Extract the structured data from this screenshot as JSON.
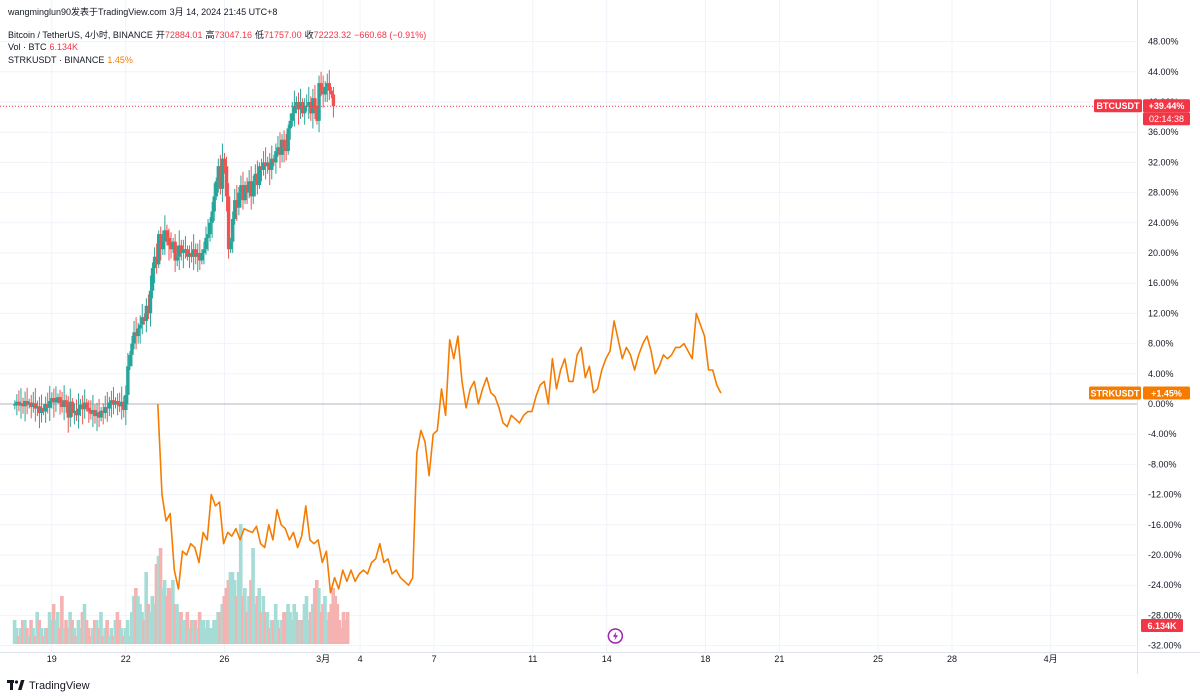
{
  "attribution": {
    "user": "wangminglun90发表于TradingView.com",
    "datetime": "3月 14, 2024 21:45 UTC+8"
  },
  "legend": {
    "symbol": "Bitcoin / TetherUS, 4小时, BINANCE",
    "open_label": "开",
    "open": "72884.01",
    "high_label": "高",
    "high": "73047.16",
    "low_label": "低",
    "low": "71757.00",
    "close_label": "收",
    "close": "72223.32",
    "change": "−660.68 (−0.91%)",
    "vol_label": "Vol · BTC",
    "vol_value": "6.134K",
    "compare_label": "STRKUSDT · BINANCE",
    "compare_value": "1.45%"
  },
  "badges": {
    "btc_name": "BTCUSDT",
    "btc_pct": "+39.44%",
    "btc_countdown": "02:14:38",
    "strk_name": "STRKUSDT",
    "strk_pct": "+1.45%",
    "vol": "6.134K"
  },
  "footer": {
    "brand": "TradingView"
  },
  "colors": {
    "up": "#26a69a",
    "down": "#ef5350",
    "compare": "#f57c00",
    "badge_red": "#f23645",
    "grid": "#f0f3fa",
    "axis_text": "#131722"
  },
  "chart_data": {
    "type": "line",
    "title": "Bitcoin / TetherUS, 4小时, BINANCE",
    "ylabel": "percent change",
    "ylim": [
      -32,
      50
    ],
    "y_ticks": [
      "48.00%",
      "44.00%",
      "40.00%",
      "36.00%",
      "32.00%",
      "28.00%",
      "24.00%",
      "20.00%",
      "16.00%",
      "12.00%",
      "8.00%",
      "4.00%",
      "0.00%",
      "-4.00%",
      "-8.00%",
      "-12.00%",
      "-16.00%",
      "-20.00%",
      "-24.00%",
      "-28.00%",
      "-32.00%"
    ],
    "x_ticks": [
      {
        "label": "19",
        "t": 3
      },
      {
        "label": "22",
        "t": 9
      },
      {
        "label": "26",
        "t": 17
      },
      {
        "label": "3月",
        "t": 25
      },
      {
        "label": "4",
        "t": 28
      },
      {
        "label": "7",
        "t": 34
      },
      {
        "label": "11",
        "t": 42
      },
      {
        "label": "14",
        "t": 48
      },
      {
        "label": "18",
        "t": 56
      },
      {
        "label": "21",
        "t": 62
      },
      {
        "label": "25",
        "t": 70
      },
      {
        "label": "28",
        "t": 76
      },
      {
        "label": "4月",
        "t": 84
      }
    ],
    "x_range": [
      -1.2,
      91
    ],
    "series": [
      {
        "name": "BTCUSDT",
        "style": "candlestick",
        "t_start": 0,
        "t_step": 0.1667,
        "closes": [
          0,
          0.3,
          -0.2,
          0.1,
          -0.3,
          0.4,
          -0.1,
          0.2,
          -0.4,
          0.1,
          -0.6,
          -0.3,
          -1.2,
          -0.5,
          -1.0,
          0.0,
          -0.5,
          0.4,
          0.8,
          0.2,
          0.6,
          0.9,
          0.1,
          -0.4,
          0.5,
          -0.2,
          -1.8,
          0.3,
          -1.2,
          -0.9,
          -1.5,
          -0.6,
          -0.1,
          -0.7,
          0.2,
          -0.5,
          -1.0,
          -1.3,
          -0.8,
          -1.6,
          -1.1,
          -1.8,
          -0.9,
          -1.2,
          -0.4,
          -0.6,
          0.2,
          0.5,
          -0.1,
          0.4,
          0.0,
          -0.3,
          0.3,
          -0.8,
          1.2,
          5.0,
          6.5,
          8.0,
          9.5,
          9.0,
          10.0,
          10.5,
          11.5,
          11.0,
          13.0,
          12.0,
          15.0,
          18.0,
          19.5,
          18.5,
          22.5,
          20.5,
          21.5,
          23.0,
          22.0,
          21.0,
          20.5,
          21.5,
          19.0,
          19.5,
          21.0,
          20.0,
          20.5,
          20.5,
          19.5,
          20.0,
          19.5,
          20.5,
          19.5,
          20.0,
          19.0,
          20.0,
          20.5,
          22.0,
          22.5,
          24.0,
          25.5,
          27.5,
          29.5,
          31.5,
          28.5,
          32.5,
          31.5,
          27.5,
          20.5,
          21.5,
          24.5,
          27.0,
          26.0,
          28.0,
          29.0,
          27.0,
          29.0,
          28.0,
          29.5,
          27.5,
          29.5,
          30.5,
          29.0,
          31.5,
          31.0,
          32.0,
          31.5,
          32.0,
          31.0,
          32.5,
          32.0,
          33.5,
          34.0,
          33.0,
          35.0,
          34.0,
          33.5,
          36.5,
          37.5,
          38.5,
          39.5,
          40.0,
          39.0,
          40.0,
          38.5,
          39.5,
          39.5,
          40.0,
          38.5,
          40.5,
          39.0,
          37.5,
          42.5,
          41.5,
          41.0,
          42.0,
          42.5,
          41.5,
          41.0,
          39.44
        ],
        "last_pct": 39.44
      },
      {
        "name": "STRKUSDT",
        "style": "line",
        "t_start": 11.6,
        "t_step": 0.3333,
        "values": [
          0.0,
          -12.0,
          -15.5,
          -14.5,
          -22.0,
          -24.5,
          -19.5,
          -20.0,
          -18.5,
          -19.0,
          -21.0,
          -17.0,
          -18.0,
          -12.0,
          -13.5,
          -13.0,
          -18.5,
          -17.0,
          -17.5,
          -16.5,
          -18.0,
          -16.5,
          -16.8,
          -17.0,
          -16.2,
          -18.5,
          -19.0,
          -16.0,
          -18.0,
          -14.0,
          -16.0,
          -16.5,
          -18.0,
          -17.0,
          -19.0,
          -17.5,
          -13.5,
          -18.0,
          -18.5,
          -18.0,
          -21.0,
          -19.5,
          -25.0,
          -23.0,
          -24.5,
          -22.0,
          -23.5,
          -22.0,
          -23.5,
          -22.5,
          -22.0,
          -22.5,
          -21.0,
          -20.5,
          -18.5,
          -21.0,
          -20.5,
          -22.5,
          -22.0,
          -23.0,
          -23.5,
          -24.0,
          -23.0,
          -6.5,
          -3.5,
          -5.0,
          -9.5,
          -4.0,
          -3.5,
          2.0,
          -1.5,
          8.5,
          6.0,
          9.0,
          3.0,
          -0.5,
          2.0,
          3.0,
          0.0,
          2.0,
          3.5,
          1.5,
          1.0,
          -0.5,
          -2.5,
          -3.0,
          -1.5,
          -2.0,
          -2.5,
          -1.5,
          -1.0,
          -1.0,
          1.0,
          2.5,
          3.0,
          0.0,
          6.0,
          2.0,
          4.5,
          6.0,
          3.0,
          3.0,
          6.5,
          7.5,
          3.5,
          5.0,
          1.5,
          2.0,
          4.5,
          6.0,
          7.0,
          11.0,
          8.5,
          6.0,
          7.5,
          6.5,
          4.5,
          6.5,
          8.0,
          9.0,
          7.0,
          4.0,
          5.0,
          6.5,
          6.0,
          6.5,
          7.5,
          7.5,
          8.0,
          7.0,
          6.0,
          12.0,
          10.5,
          9.0,
          4.5,
          4.5,
          2.5,
          1.45
        ],
        "last_pct": 1.45
      },
      {
        "name": "Vol · BTC",
        "style": "histogram",
        "t_start": 0,
        "t_step": 0.1667,
        "values": [
          3,
          2,
          1,
          2,
          3,
          3,
          2,
          1,
          3,
          2,
          1,
          4,
          3,
          2,
          1,
          2,
          2,
          4,
          3,
          5,
          3,
          4,
          2,
          6,
          2,
          3,
          2,
          4,
          3,
          2,
          1,
          3,
          2,
          4,
          5,
          3,
          2,
          1,
          2,
          3,
          3,
          2,
          4,
          1,
          2,
          3,
          1,
          2,
          1,
          3,
          4,
          3,
          2,
          1,
          2,
          3,
          1,
          4,
          6,
          7,
          6,
          5,
          4,
          3,
          9,
          5,
          4,
          6,
          5,
          10,
          11,
          12,
          7,
          8,
          6,
          7,
          7,
          8,
          5,
          5,
          4,
          4,
          3,
          3,
          4,
          2,
          3,
          3,
          3,
          2,
          4,
          3,
          3,
          2,
          3,
          2,
          2,
          3,
          3,
          4,
          4,
          5,
          6,
          7,
          8,
          9,
          9,
          8,
          6,
          9,
          15,
          6,
          7,
          4,
          6,
          8,
          12,
          5,
          6,
          7,
          4,
          6,
          4,
          4,
          2,
          3,
          3,
          5,
          3,
          2,
          3,
          4,
          4,
          5,
          4,
          3,
          5,
          4,
          3,
          3,
          3,
          5,
          6,
          3,
          4,
          5,
          7,
          8,
          7,
          4,
          5,
          6,
          3,
          4,
          5,
          7,
          6,
          5,
          3,
          2,
          4,
          3,
          4
        ],
        "closes_for_color": "BTCUSDT",
        "last_value": "6.134K"
      }
    ]
  }
}
